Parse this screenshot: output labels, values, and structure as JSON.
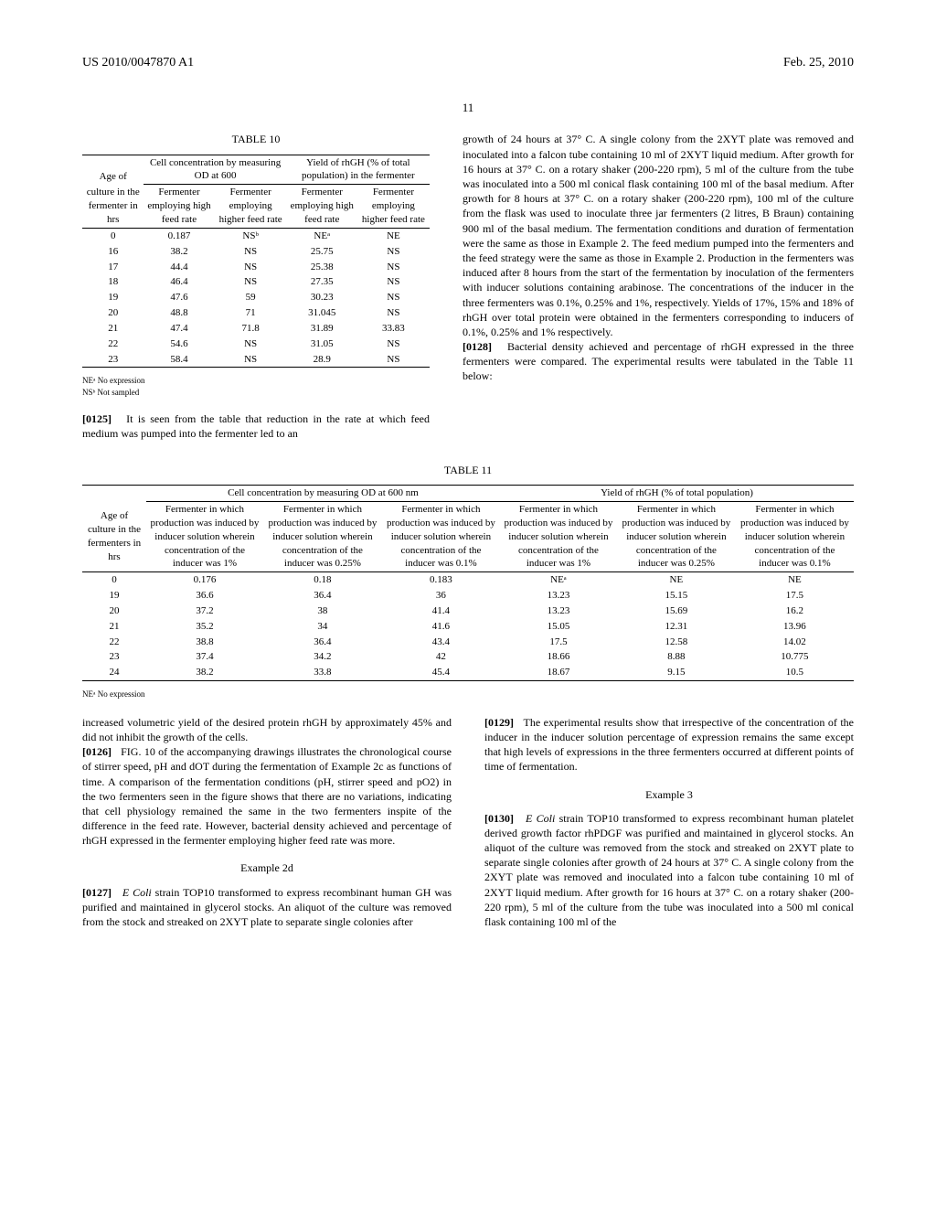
{
  "header": {
    "pubNo": "US 2010/0047870 A1",
    "date": "Feb. 25, 2010",
    "pageTop": "11"
  },
  "table10": {
    "caption": "TABLE 10",
    "group1": "Cell concentration by measuring OD at 600",
    "group2": "Yield of rhGH (% of total population) in the fermenter",
    "colAge": "Age of",
    "colAge2": "culture in the fermenter in hrs",
    "subA": "Fermenter employing high feed rate",
    "subB": "Fermenter employing higher feed rate",
    "rows": [
      {
        "age": "0",
        "a": "0.187",
        "b": "NSᵇ",
        "c": "NEᵃ",
        "d": "NE"
      },
      {
        "age": "16",
        "a": "38.2",
        "b": "NS",
        "c": "25.75",
        "d": "NS"
      },
      {
        "age": "17",
        "a": "44.4",
        "b": "NS",
        "c": "25.38",
        "d": "NS"
      },
      {
        "age": "18",
        "a": "46.4",
        "b": "NS",
        "c": "27.35",
        "d": "NS"
      },
      {
        "age": "19",
        "a": "47.6",
        "b": "59",
        "c": "30.23",
        "d": "NS"
      },
      {
        "age": "20",
        "a": "48.8",
        "b": "71",
        "c": "31.045",
        "d": "NS"
      },
      {
        "age": "21",
        "a": "47.4",
        "b": "71.8",
        "c": "31.89",
        "d": "33.83"
      },
      {
        "age": "22",
        "a": "54.6",
        "b": "NS",
        "c": "31.05",
        "d": "NS"
      },
      {
        "age": "23",
        "a": "58.4",
        "b": "NS",
        "c": "28.9",
        "d": "NS"
      }
    ],
    "fn1": "NEᵃ No expression",
    "fn2": "NSᵇ Not sampled"
  },
  "p0125": {
    "num": "[0125]",
    "text": "It is seen from the table that reduction in the rate at which feed medium was pumped into the fermenter led to an"
  },
  "rightUpper": "growth of 24 hours at 37° C. A single colony from the 2XYT plate was removed and inoculated into a falcon tube containing 10 ml of 2XYT liquid medium. After growth for 16 hours at 37° C. on a rotary shaker (200-220 rpm), 5 ml of the culture from the tube was inoculated into a 500 ml conical flask containing 100 ml of the basal medium. After growth for 8 hours at 37° C. on a rotary shaker (200-220 rpm), 100 ml of the culture from the flask was used to inoculate three jar fermenters (2 litres, B Braun) containing 900 ml of the basal medium. The fermentation conditions and duration of fermentation were the same as those in Example 2. The feed medium pumped into the fermenters and the feed strategy were the same as those in Example 2. Production in the fermenters was induced after 8 hours from the start of the fermentation by inoculation of the fermenters with inducer solutions containing arabinose. The concentrations of the inducer in the three fermenters was 0.1%, 0.25% and 1%, respectively. Yields of 17%, 15% and 18% of rhGH over total protein were obtained in the fermenters corresponding to inducers of 0.1%, 0.25% and 1% respectively.",
  "p0128": {
    "num": "[0128]",
    "text": "Bacterial density achieved and percentage of rhGH expressed in the three fermenters were compared. The experimental results were tabulated in the Table 11 below:"
  },
  "table11": {
    "caption": "TABLE 11",
    "group1": "Cell concentration by measuring OD at 600 nm",
    "group2": "Yield of rhGH (% of total population)",
    "colAge": "Age of culture in the fermenters in hrs",
    "sub1": "Fermenter in which production was induced by inducer solution wherein concentration of the inducer was 1%",
    "sub025": "Fermenter in which production was induced by inducer solution wherein concentration of the inducer was 0.25%",
    "sub01": "Fermenter in which production was induced by inducer solution wherein concentration of the inducer was 0.1%",
    "rows": [
      {
        "age": "0",
        "a": "0.176",
        "b": "0.18",
        "c": "0.183",
        "d": "NEᵃ",
        "e": "NE",
        "f": "NE"
      },
      {
        "age": "19",
        "a": "36.6",
        "b": "36.4",
        "c": "36",
        "d": "13.23",
        "e": "15.15",
        "f": "17.5"
      },
      {
        "age": "20",
        "a": "37.2",
        "b": "38",
        "c": "41.4",
        "d": "13.23",
        "e": "15.69",
        "f": "16.2"
      },
      {
        "age": "21",
        "a": "35.2",
        "b": "34",
        "c": "41.6",
        "d": "15.05",
        "e": "12.31",
        "f": "13.96"
      },
      {
        "age": "22",
        "a": "38.8",
        "b": "36.4",
        "c": "43.4",
        "d": "17.5",
        "e": "12.58",
        "f": "14.02"
      },
      {
        "age": "23",
        "a": "37.4",
        "b": "34.2",
        "c": "42",
        "d": "18.66",
        "e": "8.88",
        "f": "10.775"
      },
      {
        "age": "24",
        "a": "38.2",
        "b": "33.8",
        "c": "45.4",
        "d": "18.67",
        "e": "9.15",
        "f": "10.5"
      }
    ],
    "fn": "NEᵃ No expression"
  },
  "lowerLeft1": "increased volumetric yield of the desired protein rhGH by approximately 45% and did not inhibit the growth of the cells.",
  "p0126": {
    "num": "[0126]",
    "text": "FIG. 10 of the accompanying drawings illustrates the chronological course of stirrer speed, pH and dOT during the fermentation of Example 2c as functions of time. A comparison of the fermentation conditions (pH, stirrer speed and pO2) in the two fermenters seen in the figure shows that there are no variations, indicating that cell physiology remained the same in the two fermenters inspite of the difference in the feed rate. However, bacterial density achieved and percentage of rhGH expressed in the fermenter employing higher feed rate was more."
  },
  "ex2d": "Example 2d",
  "p0127": {
    "num": "[0127]",
    "textPre": "",
    "italic": "E Coli",
    "textPost": " strain TOP10 transformed to express recombinant human GH was purified and maintained in glycerol stocks. An aliquot of the culture was removed from the stock and streaked on 2XYT plate to separate single colonies after"
  },
  "p0129": {
    "num": "[0129]",
    "text": "The experimental results show that irrespective of the concentration of the inducer in the inducer solution percentage of expression remains the same except that high levels of expressions in the three fermenters occurred at different points of time of fermentation."
  },
  "ex3": "Example 3",
  "p0130": {
    "num": "[0130]",
    "italic": "E Coli",
    "textPost": " strain TOP10 transformed to express recombinant human platelet derived growth factor rhPDGF was purified and maintained in glycerol stocks. An aliquot of the culture was removed from the stock and streaked on 2XYT plate to separate single colonies after growth of 24 hours at 37° C. A single colony from the 2XYT plate was removed and inoculated into a falcon tube containing 10 ml of 2XYT liquid medium. After growth for 16 hours at 37° C. on a rotary shaker (200-220 rpm), 5 ml of the culture from the tube was inoculated into a 500 ml conical flask containing 100 ml of the"
  }
}
